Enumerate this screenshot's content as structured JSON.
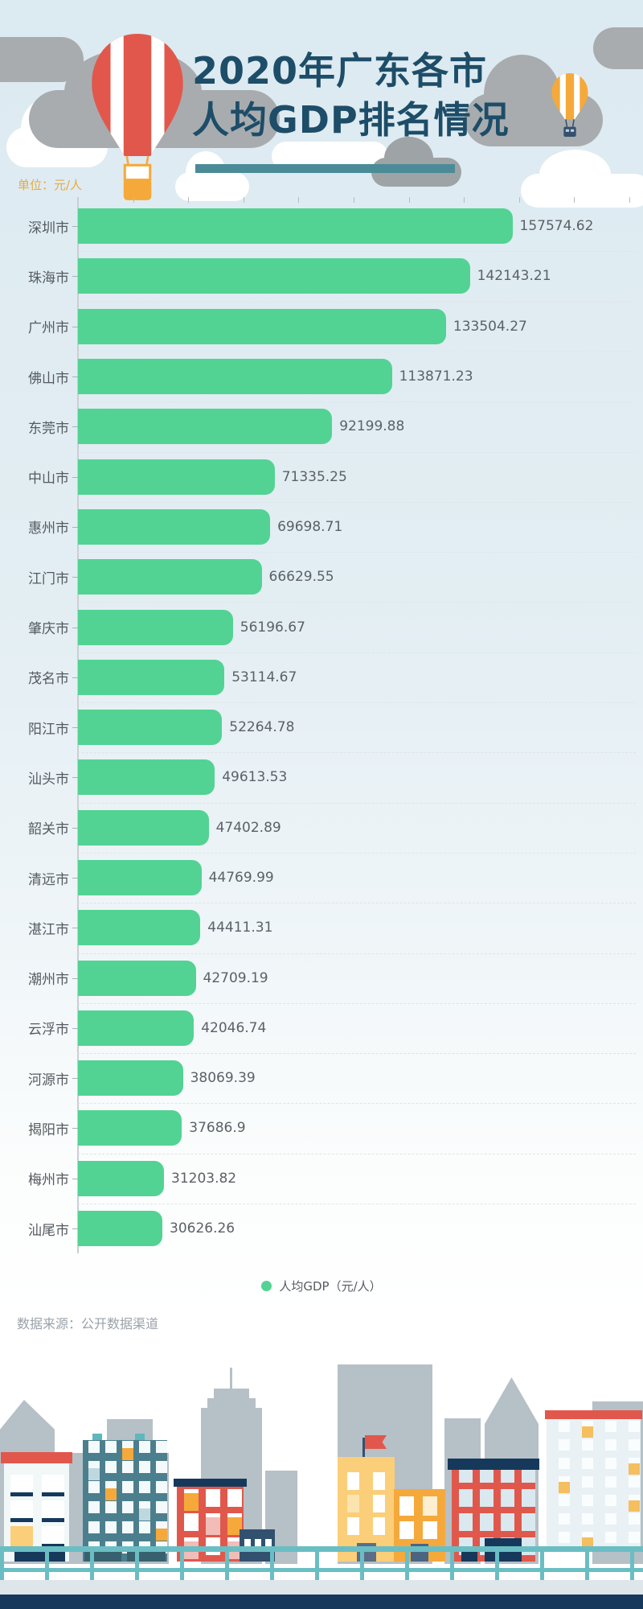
{
  "header": {
    "title_line1": "2020年广东各市",
    "title_line2": "人均GDP排名情况",
    "unit_label": "单位：元/人"
  },
  "chart_data": {
    "type": "bar",
    "orientation": "horizontal",
    "title": "2020年广东各市人均GDP排名情况",
    "unit": "元/人",
    "series_name": "人均GDP",
    "categories": [
      "深圳市",
      "珠海市",
      "广州市",
      "佛山市",
      "东莞市",
      "中山市",
      "惠州市",
      "江门市",
      "肇庆市",
      "茂名市",
      "阳江市",
      "汕头市",
      "韶关市",
      "清远市",
      "湛江市",
      "潮州市",
      "云浮市",
      "河源市",
      "揭阳市",
      "梅州市",
      "汕尾市"
    ],
    "values": [
      157574.62,
      142143.21,
      133504.27,
      113871.23,
      92199.88,
      71335.25,
      69698.71,
      66629.55,
      56196.67,
      53114.67,
      52264.78,
      49613.53,
      47402.89,
      44769.99,
      44411.31,
      42709.19,
      42046.74,
      38069.39,
      37686.9,
      31203.82,
      30626.26
    ],
    "xlim": [
      0,
      200000
    ],
    "x_tick_interval": 20000,
    "grid": "dashed-row-separators",
    "legend_position": "bottom-center",
    "value_labels": "outside-end"
  },
  "legend": {
    "label": "人均GDP（元/人）"
  },
  "footer": {
    "source": "数据来源：公开数据渠道"
  },
  "colors": {
    "bar": "#52d393",
    "title": "#1d4d68",
    "accent_teal": "#4a8b97",
    "unit": "#eda93c",
    "city_text": "#545a60",
    "value_text": "#5b6167",
    "navy": "#16395b",
    "red": "#e2574c",
    "orange": "#f5a93b",
    "rail": "#6abec3"
  },
  "illustrations": {
    "header": "red-white striped hot-air balloon, small orange hot-air balloon, gray and white clouds",
    "footer": "flat city skyline with colorful buildings behind a teal railing"
  }
}
